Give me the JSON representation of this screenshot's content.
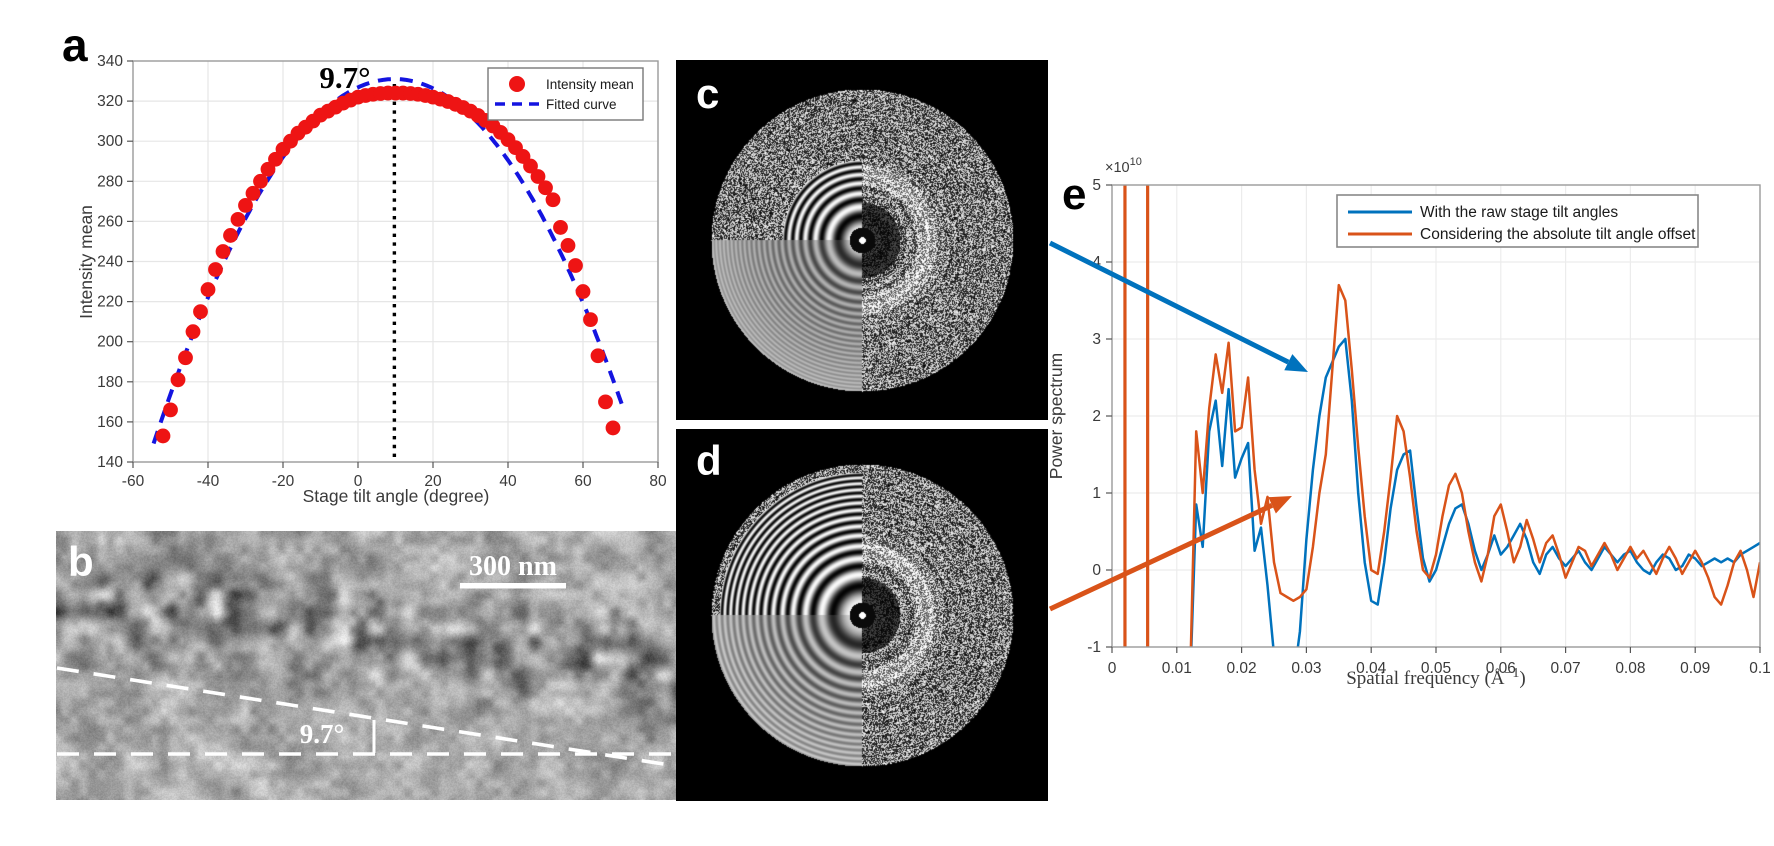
{
  "panels": {
    "a": {
      "label": "a",
      "xlabel": "Stage tilt angle (degree)",
      "ylabel": "Intensity mean",
      "annotation_text": "9.7°",
      "legend": [
        "Intensity mean",
        "Fitted curve"
      ]
    },
    "b": {
      "label": "b",
      "scale_bar_text": "300 nm",
      "angle_text": "9.7°"
    },
    "c": {
      "label": "c"
    },
    "d": {
      "label": "d"
    },
    "e": {
      "label": "e",
      "ylabel": "Power spectrum",
      "xlabel_prefix": "Spatial frequency (Å",
      "xlabel_sup": "−1",
      "xlabel_suffix": ")",
      "exponent_base": "×10",
      "exponent_power": "10",
      "legend": [
        "With the raw stage tilt angles",
        "Considering the absolute tilt angle offset"
      ]
    }
  },
  "chart_data": [
    {
      "panel": "a",
      "type": "scatter",
      "title": "",
      "xlabel": "Stage tilt angle (degree)",
      "ylabel": "Intensity mean",
      "xlim": [
        -60,
        80
      ],
      "ylim": [
        140,
        340
      ],
      "xticks": [
        -60,
        -40,
        -20,
        0,
        20,
        40,
        60,
        80
      ],
      "yticks": [
        140,
        160,
        180,
        200,
        220,
        240,
        260,
        280,
        300,
        320,
        340
      ],
      "grid": true,
      "annotation": {
        "text": "9.7°",
        "vline_x": 9.7
      },
      "series": [
        {
          "name": "Intensity mean",
          "type": "scatter",
          "color": "#ee1414",
          "x_start": -52,
          "x_step": 2,
          "values": [
            153,
            166,
            181,
            192,
            205,
            215,
            226,
            236,
            245,
            253,
            261,
            268,
            274,
            280,
            286,
            291,
            296,
            300,
            304,
            307,
            310,
            313,
            315,
            317,
            319,
            320.5,
            322,
            322.8,
            323.4,
            323.8,
            324,
            324,
            324,
            323.8,
            323.4,
            322.8,
            322,
            321,
            319.8,
            318.4,
            316.8,
            315,
            312.8,
            310.4,
            307.6,
            304.4,
            300.8,
            296.8,
            292.4,
            287.6,
            282.4,
            276.8,
            270.8,
            257,
            248,
            238,
            225,
            211,
            193,
            170,
            157
          ]
        },
        {
          "name": "Fitted curve",
          "type": "dashed-line",
          "color": "#1414e0",
          "fit_vertex": [
            9.7,
            331
          ],
          "fit_coeff": -0.0441,
          "fit_x_range": [
            -54.5,
            71
          ]
        }
      ]
    },
    {
      "panel": "e",
      "type": "line",
      "title": "",
      "ylabel": "Power spectrum",
      "xlabel": "Spatial frequency (Å⁻¹)",
      "y_exponent": "×10¹⁰",
      "xlim": [
        0,
        0.1
      ],
      "ylim": [
        -1,
        5
      ],
      "xticks": [
        0,
        0.01,
        0.02,
        0.03,
        0.04,
        0.05,
        0.06,
        0.07,
        0.08,
        0.09,
        0.1
      ],
      "yticks": [
        -1,
        0,
        1,
        2,
        3,
        4,
        5
      ],
      "grid": true,
      "legend_position": "northeast",
      "x_start": 0.012,
      "x_step": 0.001,
      "extra_vlines": [
        {
          "x": 0.002,
          "color": "#D95319"
        },
        {
          "x": 0.0055,
          "color": "#D95319"
        }
      ],
      "series": [
        {
          "name": "With the raw stage tilt angles",
          "color": "#0072BD",
          "values": [
            -1.6,
            0.85,
            0.3,
            1.8,
            2.2,
            1.35,
            2.35,
            1.2,
            1.45,
            1.65,
            0.25,
            0.55,
            -0.2,
            -1.1,
            -1.5,
            -1.6,
            -1.45,
            -0.8,
            0.4,
            1.3,
            2,
            2.5,
            2.7,
            2.9,
            3,
            2.2,
            1,
            0.1,
            -0.4,
            -0.45,
            0.1,
            0.8,
            1.3,
            1.5,
            1.55,
            0.8,
            0.15,
            -0.15,
            0,
            0.3,
            0.6,
            0.8,
            0.85,
            0.6,
            0.25,
            0,
            0.2,
            0.45,
            0.2,
            0.3,
            0.45,
            0.6,
            0.4,
            0.1,
            -0.05,
            0.2,
            0.3,
            0.15,
            0.05,
            0.15,
            0.25,
            0.1,
            0,
            0.15,
            0.3,
            0.2,
            0.1,
            0.2,
            0.25,
            0.1,
            0,
            -0.05,
            0.1,
            0.2,
            0.15,
            0,
            0.05,
            0.2,
            0.15,
            0.05,
            0.1,
            0.15,
            0.1,
            0.15,
            0.1,
            0.2,
            0.25,
            0.3,
            0.35
          ]
        },
        {
          "name": "Considering the absolute tilt angle offset",
          "color": "#D95319",
          "values": [
            -1.6,
            1.8,
            1,
            2.1,
            2.8,
            2.3,
            2.95,
            1.8,
            1.85,
            2.5,
            1.3,
            0.6,
            0.95,
            0.1,
            -0.3,
            -0.35,
            -0.4,
            -0.35,
            -0.25,
            0.3,
            1,
            1.5,
            2.6,
            3.7,
            3.5,
            2.6,
            1.6,
            0.7,
            0,
            -0.05,
            0.5,
            1.2,
            2,
            1.8,
            1.2,
            0.5,
            0,
            -0.1,
            0.2,
            0.7,
            1.1,
            1.25,
            1,
            0.5,
            0.1,
            -0.15,
            0.2,
            0.7,
            0.85,
            0.5,
            0.1,
            0.3,
            0.65,
            0.4,
            0.1,
            0.35,
            0.45,
            0.2,
            -0.1,
            0.1,
            0.3,
            0.25,
            0.05,
            0.2,
            0.35,
            0.2,
            0,
            0.15,
            0.3,
            0.15,
            0.25,
            0.1,
            -0.05,
            0.15,
            0.3,
            0.15,
            -0.05,
            0.1,
            0.25,
            0.1,
            -0.1,
            -0.35,
            -0.45,
            -0.2,
            0.1,
            0.25,
            0,
            -0.35,
            0.1
          ]
        }
      ],
      "arrows": [
        {
          "target_series": "With the raw stage tilt angles",
          "color": "#0072BD",
          "from": [
            1050,
            243
          ],
          "to": [
            1308,
            372
          ]
        },
        {
          "target_series": "Considering the absolute tilt angle offset",
          "color": "#D95319",
          "from": [
            1050,
            609
          ],
          "to": [
            1292,
            496
          ]
        }
      ]
    }
  ]
}
